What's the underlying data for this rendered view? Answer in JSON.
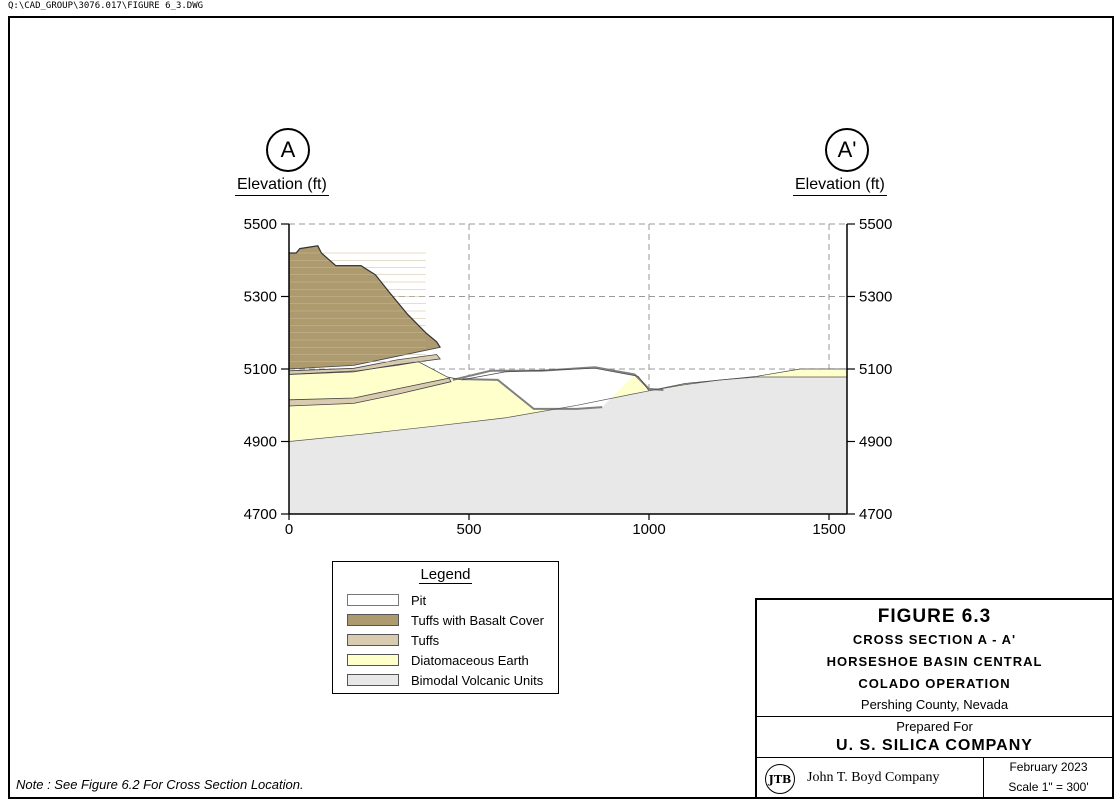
{
  "file_path": "Q:\\CAD_GROUP\\3076.017\\FIGURE 6_3.DWG",
  "section": {
    "left_marker": "A",
    "right_marker": "A'",
    "left_axis_label": "Elevation (ft)",
    "right_axis_label": "Elevation (ft)"
  },
  "chart_data": {
    "type": "area",
    "xlim": [
      0,
      1550
    ],
    "ylim": [
      4700,
      5500
    ],
    "x_ticks": [
      0,
      500,
      1000,
      1500
    ],
    "y_ticks": [
      4700,
      4900,
      5100,
      5300,
      5500
    ],
    "x_tick_labels": [
      "0",
      "500",
      "1000",
      "1500"
    ],
    "y_tick_labels": [
      "4700",
      "4900",
      "5100",
      "5300",
      "5500"
    ],
    "grid": true,
    "units": {
      "x": "ft",
      "y": "ft"
    },
    "colors": {
      "pit": "#ffffff",
      "pit_outline": "#808080",
      "tuffs_basalt": "#ad9a6e",
      "tuffs": "#d9cbb0",
      "diatomaceous": "#ffffcc",
      "bimodal": "#e8e8e8"
    },
    "layers": [
      {
        "name": "Bimodal Volcanic Units",
        "key": "bimodal",
        "top_surface": [
          [
            0,
            4900
          ],
          [
            200,
            4920
          ],
          [
            400,
            4942
          ],
          [
            600,
            4965
          ],
          [
            800,
            5000
          ],
          [
            1000,
            5040
          ],
          [
            1100,
            5057
          ],
          [
            1200,
            5070
          ],
          [
            1300,
            5078
          ],
          [
            1400,
            5078
          ],
          [
            1550,
            5078
          ]
        ]
      },
      {
        "name": "Diatomaceous Earth",
        "key": "diatomaceous",
        "top_surface": [
          [
            0,
            5085
          ],
          [
            190,
            5095
          ],
          [
            300,
            5110
          ],
          [
            360,
            5120
          ],
          [
            440,
            5078
          ],
          [
            480,
            5070
          ],
          [
            600,
            5092
          ],
          [
            850,
            5102
          ],
          [
            970,
            5080
          ],
          [
            1000,
            5040
          ],
          [
            1100,
            5060
          ],
          [
            1300,
            5080
          ],
          [
            1420,
            5100
          ],
          [
            1550,
            5100
          ]
        ]
      },
      {
        "name": "Tuffs",
        "key": "tuffs",
        "bands": [
          {
            "top": [
              [
                0,
                5015
              ],
              [
                180,
                5020
              ],
              [
                300,
                5045
              ],
              [
                445,
                5075
              ]
            ],
            "bottom": [
              [
                0,
                4998
              ],
              [
                180,
                5005
              ],
              [
                300,
                5030
              ],
              [
                450,
                5065
              ]
            ]
          },
          {
            "top": [
              [
                0,
                5095
              ],
              [
                180,
                5102
              ],
              [
                300,
                5125
              ],
              [
                410,
                5140
              ]
            ],
            "bottom": [
              [
                0,
                5085
              ],
              [
                180,
                5092
              ],
              [
                300,
                5112
              ],
              [
                420,
                5128
              ]
            ]
          }
        ]
      },
      {
        "name": "Tuffs with Basalt Cover",
        "key": "tuffs_basalt",
        "top_surface": [
          [
            0,
            5420
          ],
          [
            20,
            5420
          ],
          [
            30,
            5432
          ],
          [
            80,
            5440
          ],
          [
            90,
            5420
          ],
          [
            130,
            5385
          ],
          [
            200,
            5385
          ],
          [
            240,
            5360
          ],
          [
            280,
            5310
          ],
          [
            330,
            5250
          ],
          [
            380,
            5200
          ],
          [
            410,
            5175
          ],
          [
            420,
            5160
          ]
        ],
        "base": [
          [
            0,
            5100
          ],
          [
            180,
            5110
          ],
          [
            300,
            5135
          ],
          [
            420,
            5160
          ]
        ]
      }
    ],
    "pit_outline": [
      [
        455,
        5070
      ],
      [
        560,
        5095
      ],
      [
        700,
        5095
      ],
      [
        850,
        5105
      ],
      [
        960,
        5085
      ],
      [
        1000,
        5045
      ],
      [
        1040,
        5042
      ]
    ],
    "pit_floor": [
      [
        480,
        5072
      ],
      [
        580,
        5070
      ],
      [
        680,
        4990
      ],
      [
        800,
        4990
      ],
      [
        870,
        4995
      ]
    ]
  },
  "legend": {
    "title": "Legend",
    "items": [
      {
        "label": "Pit",
        "color": "#ffffff"
      },
      {
        "label": "Tuffs with Basalt Cover",
        "color": "#ad9a6e"
      },
      {
        "label": "Tuffs",
        "color": "#d9cbb0"
      },
      {
        "label": "Diatomaceous Earth",
        "color": "#ffffcc"
      },
      {
        "label": "Bimodal Volcanic Units",
        "color": "#e8e8e8"
      }
    ]
  },
  "title_block": {
    "figure": "FIGURE 6.3",
    "line1": "CROSS SECTION A - A'",
    "line2": "HORSESHOE BASIN CENTRAL",
    "line3": "COLADO OPERATION",
    "line4": "Pershing County, Nevada",
    "prepared_for_label": "Prepared For",
    "client": "U. S. SILICA COMPANY",
    "logo_text": "JTB",
    "company": "John T. Boyd Company",
    "date": "February 2023",
    "scale": "Scale 1\" = 300'"
  },
  "note": "Note : See Figure 6.2 For Cross Section Location."
}
